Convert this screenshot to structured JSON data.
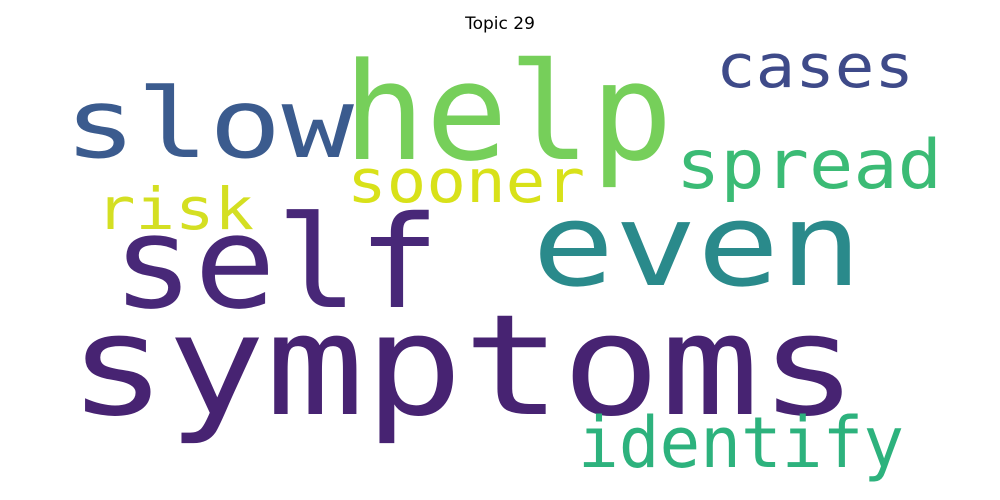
{
  "title": "Topic 29",
  "words": [
    {
      "text": "symptoms",
      "color": "#472372"
    },
    {
      "text": "self",
      "color": "#482878"
    },
    {
      "text": "even",
      "color": "#2a8a8b"
    },
    {
      "text": "help",
      "color": "#76cf5a"
    },
    {
      "text": "slow",
      "color": "#3b5b8e"
    },
    {
      "text": "cases",
      "color": "#3e4a89"
    },
    {
      "text": "spread",
      "color": "#3bbb75"
    },
    {
      "text": "sooner",
      "color": "#d8e119"
    },
    {
      "text": "risk",
      "color": "#d4df22"
    },
    {
      "text": "identify",
      "color": "#2db27d"
    }
  ]
}
